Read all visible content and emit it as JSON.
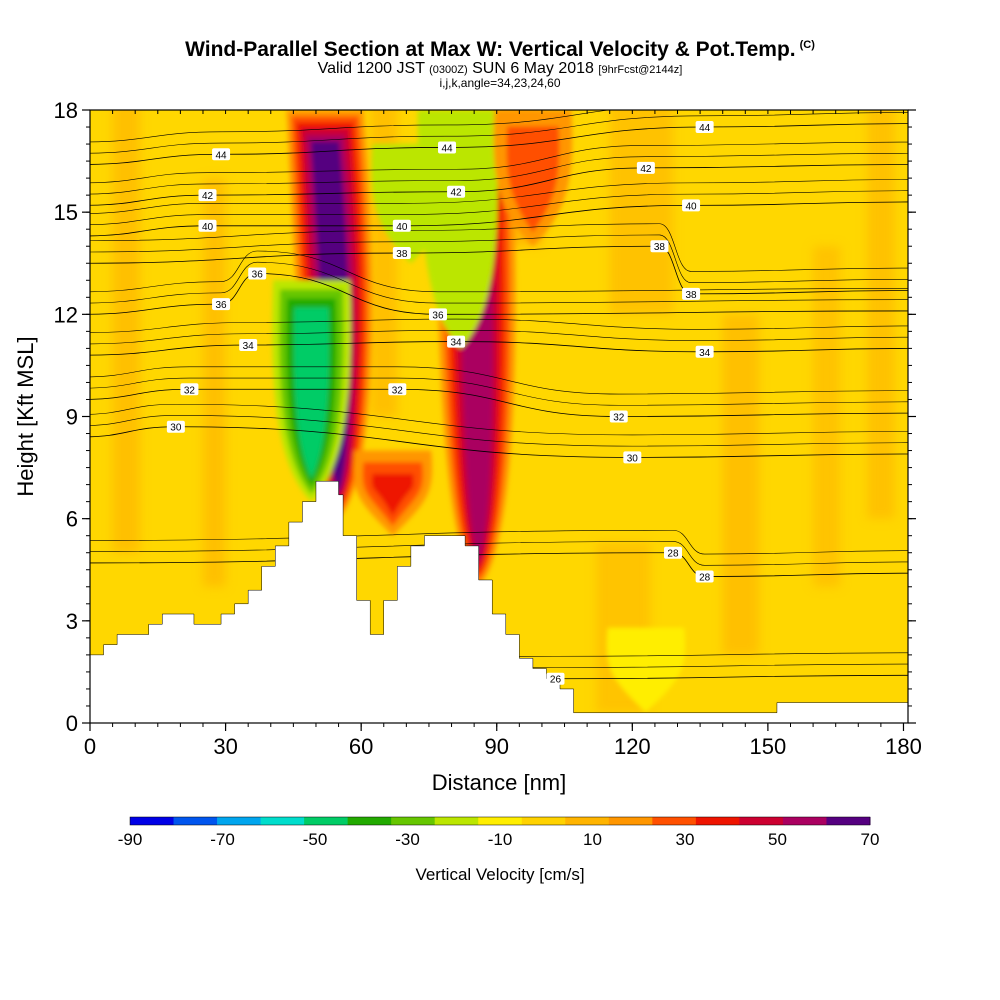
{
  "header": {
    "title": "Wind-Parallel Section at Max W: Vertical Velocity & Pot.Temp.",
    "copyright": "(C)",
    "valid_main": "Valid 1200 JST",
    "valid_utc": "(0300Z)",
    "valid_date": "SUN 6 May 2018",
    "forecast": "[9hrFcst@2144z]",
    "indices": "i,j,k,angle=34,23,24,60"
  },
  "chart_data": {
    "type": "heatmap",
    "xlabel": "Distance [nm]",
    "ylabel": "Height [Kft MSL]",
    "xlim": [
      0,
      181
    ],
    "ylim": [
      0,
      18
    ],
    "x_ticks": [
      0,
      30,
      60,
      90,
      120,
      150,
      180
    ],
    "y_ticks": [
      0,
      3,
      6,
      9,
      12,
      15,
      18
    ],
    "x_tick_labels": [
      "0",
      "30",
      "60",
      "90",
      "120",
      "150",
      "180"
    ],
    "y_tick_labels": [
      "0",
      "3",
      "6",
      "9",
      "12",
      "15",
      "18"
    ],
    "background_color": "#ffd700",
    "terrain": [
      [
        0,
        2.0
      ],
      [
        3,
        2.3
      ],
      [
        6,
        2.6
      ],
      [
        13,
        2.9
      ],
      [
        16,
        3.2
      ],
      [
        23,
        2.9
      ],
      [
        29,
        3.2
      ],
      [
        32,
        3.5
      ],
      [
        35,
        3.9
      ],
      [
        38,
        4.6
      ],
      [
        41,
        5.2
      ],
      [
        44,
        5.9
      ],
      [
        47,
        6.5
      ],
      [
        50,
        7.1
      ],
      [
        55,
        6.7
      ],
      [
        56,
        5.5
      ],
      [
        59,
        3.6
      ],
      [
        62,
        2.6
      ],
      [
        65,
        3.6
      ],
      [
        68,
        4.6
      ],
      [
        71,
        5.2
      ],
      [
        74,
        5.5
      ],
      [
        80,
        5.5
      ],
      [
        83,
        5.2
      ],
      [
        86,
        4.2
      ],
      [
        89,
        3.2
      ],
      [
        92,
        2.6
      ],
      [
        95,
        1.9
      ],
      [
        98,
        1.6
      ],
      [
        101,
        1.3
      ],
      [
        104,
        1.0
      ],
      [
        107,
        0.3
      ],
      [
        152,
        0.6
      ],
      [
        181,
        0.6
      ]
    ],
    "velocity_features": [
      {
        "kind": "updraft",
        "x": 55,
        "ytop": 18,
        "ybottom": 6,
        "w_cm_s": 65
      },
      {
        "kind": "downdraft",
        "x": 49,
        "ytop": 13,
        "ybottom": 6.5,
        "w_cm_s": -50
      },
      {
        "kind": "updraft",
        "x": 86,
        "ytop": 17,
        "ybottom": 4,
        "w_cm_s": 60
      },
      {
        "kind": "downdraft",
        "x": 82,
        "ytop": 18,
        "ybottom": 11,
        "w_cm_s": -15
      },
      {
        "kind": "downdraft",
        "x": 71,
        "ytop": 17,
        "ybottom": 13.5,
        "w_cm_s": -15
      },
      {
        "kind": "downdraft",
        "x": 123,
        "ytop": 2.8,
        "ybottom": 0.3,
        "w_cm_s": -10
      },
      {
        "kind": "updraft",
        "x": 67,
        "ytop": 8,
        "ybottom": 5.5,
        "w_cm_s": 35
      },
      {
        "kind": "updraft",
        "x": 98,
        "ytop": 18,
        "ybottom": 14,
        "w_cm_s": 25
      }
    ],
    "theta_contours": [
      {
        "value": "26",
        "label_positions": [
          [
            103,
            1.3
          ]
        ]
      },
      {
        "value": "28",
        "label_positions": [
          [
            129,
            5.0
          ],
          [
            136,
            4.3
          ]
        ]
      },
      {
        "value": "30",
        "label_positions": [
          [
            19,
            8.7
          ],
          [
            120,
            7.8
          ]
        ]
      },
      {
        "value": "32",
        "label_positions": [
          [
            22,
            9.8
          ],
          [
            68,
            9.8
          ],
          [
            117,
            9.0
          ]
        ]
      },
      {
        "value": "34",
        "label_positions": [
          [
            35,
            11.1
          ],
          [
            81,
            11.2
          ],
          [
            136,
            10.9
          ]
        ]
      },
      {
        "value": "36",
        "label_positions": [
          [
            29,
            12.3
          ],
          [
            37,
            13.2
          ],
          [
            77,
            12.0
          ]
        ]
      },
      {
        "value": "38",
        "label_positions": [
          [
            69,
            13.8
          ],
          [
            126,
            14.0
          ],
          [
            133,
            12.6
          ]
        ]
      },
      {
        "value": "40",
        "label_positions": [
          [
            26,
            14.6
          ],
          [
            69,
            14.6
          ],
          [
            133,
            15.2
          ]
        ]
      },
      {
        "value": "42",
        "label_positions": [
          [
            26,
            15.5
          ],
          [
            81,
            15.6
          ],
          [
            123,
            16.3
          ]
        ]
      },
      {
        "value": "44",
        "label_positions": [
          [
            29,
            16.7
          ],
          [
            79,
            16.9
          ],
          [
            136,
            17.5
          ]
        ]
      }
    ],
    "colorbar": {
      "title": "Vertical Velocity [cm/s]",
      "range": [
        -90,
        70
      ],
      "tick_labels": [
        "-90",
        "-70",
        "-50",
        "-30",
        "-10",
        "10",
        "30",
        "50",
        "70"
      ],
      "colors": [
        "#0000e6",
        "#0055ee",
        "#00a5ee",
        "#00ddcc",
        "#00cc66",
        "#22aa00",
        "#66c600",
        "#bbe600",
        "#ffee00",
        "#ffd200",
        "#ffb400",
        "#ff9600",
        "#ff5000",
        "#ee1400",
        "#cc0030",
        "#aa0060",
        "#550080"
      ]
    }
  }
}
